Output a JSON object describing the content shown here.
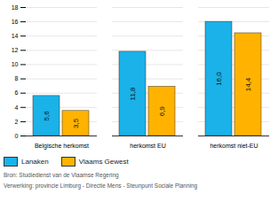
{
  "chart_data": {
    "type": "bar",
    "categories": [
      "Belgische herkomst",
      "herkomst EU",
      "herkomst niet-EU"
    ],
    "series": [
      {
        "name": "Lanaken",
        "color": "#1AB2E8",
        "values": [
          5.6,
          11.8,
          16.0
        ],
        "value_labels": [
          "5,6",
          "11,8",
          "16,0"
        ]
      },
      {
        "name": "Vlaams Gewest",
        "color": "#FFB300",
        "values": [
          3.5,
          6.9,
          14.4
        ],
        "value_labels": [
          "3,5",
          "6,9",
          "14,4"
        ]
      }
    ],
    "ylim": [
      0,
      18
    ],
    "yticks": [
      0,
      2,
      4,
      6,
      8,
      10,
      12,
      14,
      16,
      18
    ],
    "grid": true,
    "data_labels": true,
    "legend": "bottom-left",
    "annotations": [
      "Bron: Studiedienst van de Vlaamse Regering",
      "Verwerking: provincie Limburg - Directie Mens - Steunpunt Sociale Planning"
    ]
  }
}
